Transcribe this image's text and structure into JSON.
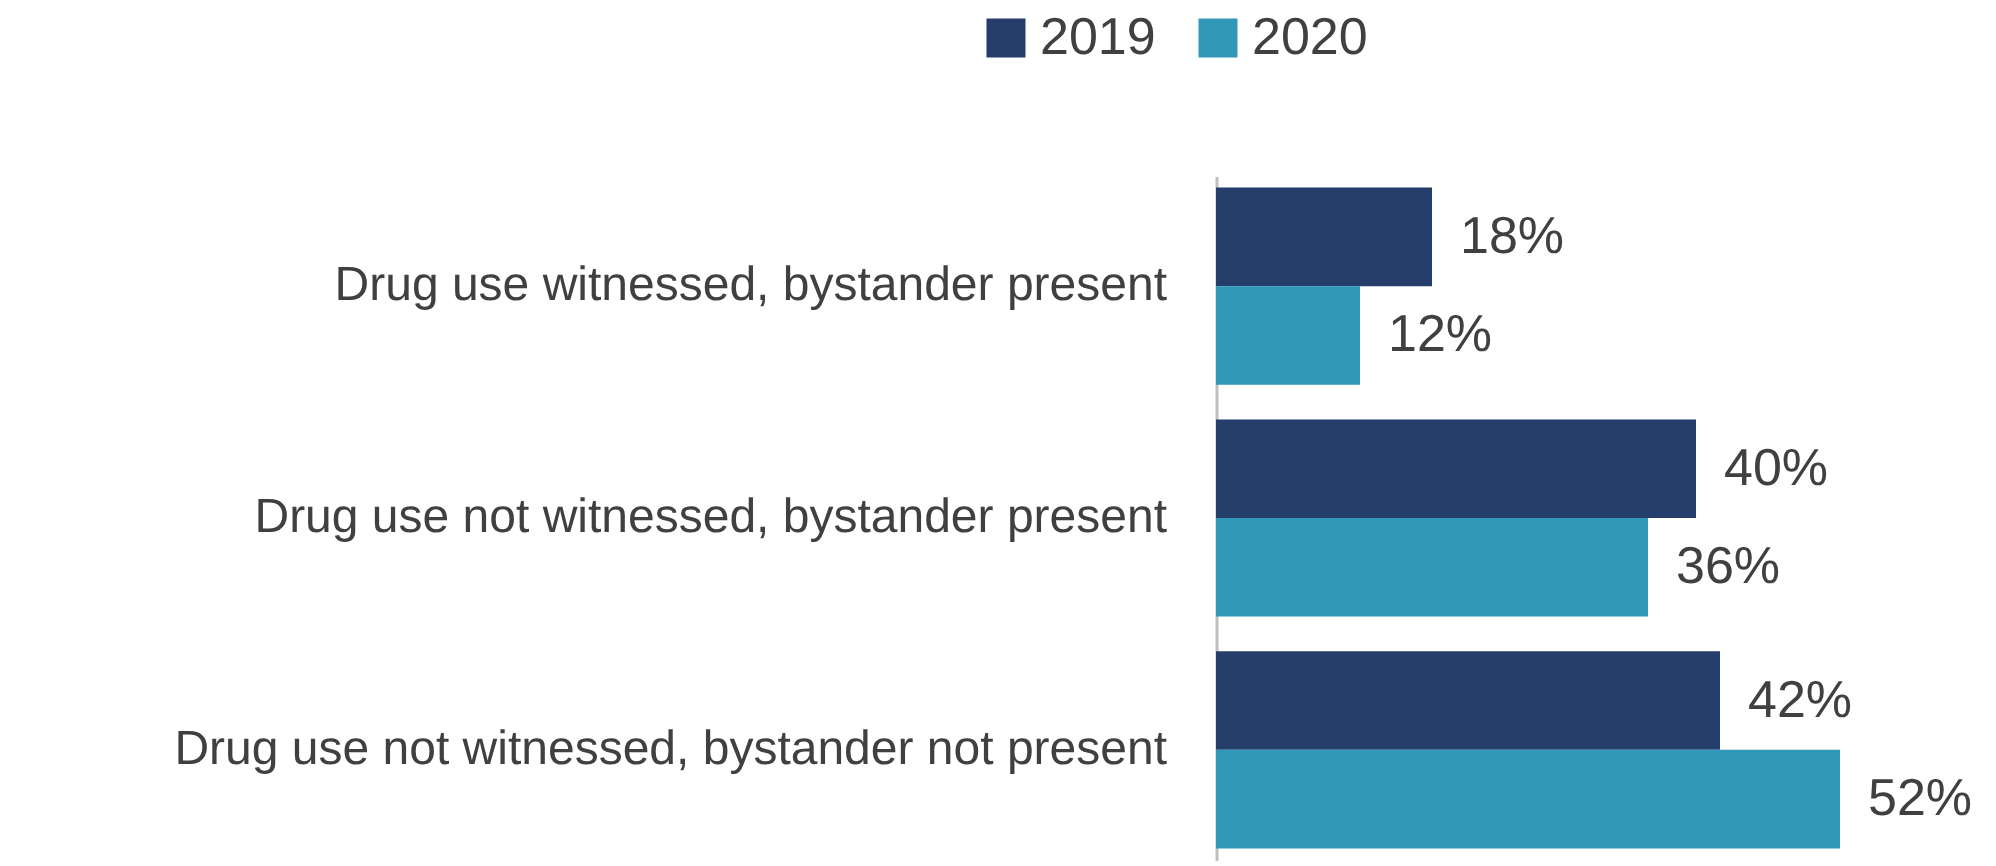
{
  "chart_data": {
    "type": "bar",
    "orientation": "horizontal",
    "categories": [
      "Drug use witnessed, bystander present",
      "Drug use not witnessed, bystander present",
      "Drug use not witnessed, bystander not present"
    ],
    "series": [
      {
        "name": "2019",
        "color": "#253d6b",
        "values": [
          18,
          40,
          42
        ],
        "value_labels": [
          "18%",
          "40%",
          "42%"
        ]
      },
      {
        "name": "2020",
        "color": "#3097b8",
        "values": [
          12,
          36,
          52
        ],
        "value_labels": [
          "12%",
          "36%",
          "52%"
        ]
      }
    ],
    "legend": "top",
    "grid": false
  }
}
